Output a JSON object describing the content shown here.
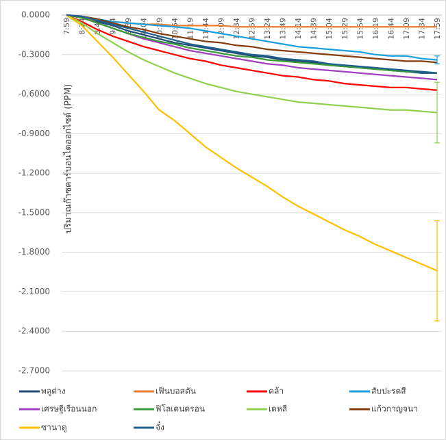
{
  "chart_data": {
    "type": "line",
    "y_label": "ปริมาณก๊าซคาร์บอนไดออกไซด์ (PPM)",
    "categories": [
      "7:59",
      "8:24",
      "8:49",
      "9:14",
      "9:39",
      "10:04",
      "10:29",
      "10:54",
      "11:19",
      "11:44",
      "12:09",
      "12:34",
      "12:59",
      "13:24",
      "13:49",
      "14:14",
      "14:39",
      "15:04",
      "15:29",
      "15:54",
      "16:19",
      "16:44",
      "17:09",
      "17:34",
      "17:59"
    ],
    "ylim": [
      -2.7,
      0
    ],
    "yticks": [
      {
        "value": 0,
        "label": "0.0000"
      },
      {
        "value": -0.3,
        "label": "-0.3000"
      },
      {
        "value": -0.6,
        "label": "-0.6000"
      },
      {
        "value": -0.9,
        "label": "-0.9000"
      },
      {
        "value": -1.2,
        "label": "-1.2000"
      },
      {
        "value": -1.5,
        "label": "-1.5000"
      },
      {
        "value": -1.8,
        "label": "-1.8000"
      },
      {
        "value": -2.1,
        "label": "-2.1000"
      },
      {
        "value": -2.4,
        "label": "-2.4000"
      },
      {
        "value": -2.7,
        "label": "-2.7000"
      }
    ],
    "grid": true,
    "legend": "bottom",
    "series": [
      {
        "name": "พลูด่าง",
        "color": "#1f4e79",
        "values": [
          0,
          -0.02,
          -0.05,
          -0.08,
          -0.12,
          -0.15,
          -0.18,
          -0.21,
          -0.23,
          -0.25,
          -0.27,
          -0.29,
          -0.31,
          -0.32,
          -0.34,
          -0.35,
          -0.36,
          -0.38,
          -0.39,
          -0.4,
          -0.41,
          -0.42,
          -0.43,
          -0.44,
          -0.44
        ]
      },
      {
        "name": "เฟินบอสตัน",
        "color": "#ed7d31",
        "values": [
          0,
          -0.02,
          -0.04,
          -0.05,
          -0.06,
          -0.07,
          -0.07,
          -0.08,
          -0.08,
          -0.08,
          -0.08,
          -0.09,
          -0.09,
          -0.09,
          -0.09,
          -0.09,
          -0.09,
          -0.09,
          -0.09,
          -0.09,
          -0.09,
          -0.09,
          -0.09,
          -0.09,
          -0.09
        ]
      },
      {
        "name": "คล้า",
        "color": "#ff0000",
        "values": [
          0,
          -0.05,
          -0.11,
          -0.16,
          -0.2,
          -0.24,
          -0.27,
          -0.3,
          -0.33,
          -0.35,
          -0.38,
          -0.4,
          -0.42,
          -0.44,
          -0.46,
          -0.47,
          -0.49,
          -0.5,
          -0.52,
          -0.53,
          -0.54,
          -0.55,
          -0.55,
          -0.56,
          -0.57
        ]
      },
      {
        "name": "สับปะรดสี",
        "color": "#1aa0e0",
        "values": [
          0,
          -0.01,
          -0.03,
          -0.05,
          -0.06,
          -0.07,
          -0.08,
          -0.09,
          -0.1,
          -0.12,
          -0.14,
          -0.16,
          -0.18,
          -0.2,
          -0.22,
          -0.24,
          -0.25,
          -0.26,
          -0.27,
          -0.28,
          -0.3,
          -0.31,
          -0.31,
          -0.33,
          -0.34
        ],
        "errors": [
          null,
          null,
          null,
          null,
          null,
          null,
          null,
          null,
          null,
          null,
          null,
          null,
          null,
          null,
          null,
          null,
          null,
          null,
          null,
          null,
          null,
          null,
          null,
          null,
          0.03
        ]
      },
      {
        "name": "เศรษฐีเรือนนอก",
        "color": "#a040c0",
        "values": [
          0,
          -0.02,
          -0.06,
          -0.1,
          -0.14,
          -0.18,
          -0.21,
          -0.24,
          -0.27,
          -0.29,
          -0.31,
          -0.33,
          -0.35,
          -0.37,
          -0.38,
          -0.4,
          -0.41,
          -0.42,
          -0.43,
          -0.44,
          -0.45,
          -0.46,
          -0.47,
          -0.48,
          -0.49
        ]
      },
      {
        "name": "ฟิโลเดนดรอน",
        "color": "#3a9a3a",
        "values": [
          0,
          -0.02,
          -0.06,
          -0.1,
          -0.14,
          -0.17,
          -0.2,
          -0.22,
          -0.25,
          -0.27,
          -0.29,
          -0.31,
          -0.32,
          -0.34,
          -0.35,
          -0.36,
          -0.37,
          -0.38,
          -0.39,
          -0.4,
          -0.41,
          -0.42,
          -0.43,
          -0.43,
          -0.44
        ]
      },
      {
        "name": "เดหลี",
        "color": "#92d050",
        "values": [
          0,
          -0.06,
          -0.14,
          -0.21,
          -0.28,
          -0.34,
          -0.39,
          -0.44,
          -0.48,
          -0.52,
          -0.55,
          -0.58,
          -0.6,
          -0.62,
          -0.64,
          -0.66,
          -0.67,
          -0.68,
          -0.69,
          -0.7,
          -0.71,
          -0.72,
          -0.72,
          -0.73,
          -0.74
        ],
        "errors": [
          null,
          null,
          null,
          null,
          null,
          null,
          null,
          null,
          null,
          null,
          null,
          null,
          null,
          null,
          null,
          null,
          null,
          null,
          null,
          null,
          null,
          null,
          null,
          null,
          0.23
        ]
      },
      {
        "name": "แก้วกาญจนา",
        "color": "#843c0c",
        "values": [
          0,
          -0.01,
          -0.03,
          -0.06,
          -0.09,
          -0.11,
          -0.14,
          -0.16,
          -0.18,
          -0.2,
          -0.21,
          -0.23,
          -0.24,
          -0.26,
          -0.27,
          -0.28,
          -0.29,
          -0.3,
          -0.31,
          -0.32,
          -0.33,
          -0.34,
          -0.35,
          -0.35,
          -0.36
        ]
      },
      {
        "name": "ซานาดู",
        "color": "#ffc000",
        "values": [
          0,
          -0.08,
          -0.2,
          -0.32,
          -0.45,
          -0.58,
          -0.72,
          -0.8,
          -0.9,
          -1.0,
          -1.08,
          -1.16,
          -1.23,
          -1.3,
          -1.38,
          -1.45,
          -1.51,
          -1.57,
          -1.63,
          -1.68,
          -1.74,
          -1.79,
          -1.84,
          -1.89,
          -1.94
        ],
        "errors": [
          null,
          null,
          null,
          null,
          null,
          null,
          null,
          null,
          null,
          null,
          null,
          null,
          null,
          null,
          null,
          null,
          null,
          null,
          null,
          null,
          null,
          null,
          null,
          null,
          0.38
        ]
      },
      {
        "name": "จั๋ง",
        "color": "#1f5f8b",
        "values": [
          0,
          -0.01,
          -0.04,
          -0.07,
          -0.1,
          -0.13,
          -0.16,
          -0.19,
          -0.22,
          -0.24,
          -0.26,
          -0.28,
          -0.3,
          -0.31,
          -0.33,
          -0.34,
          -0.35,
          -0.37,
          -0.38,
          -0.39,
          -0.4,
          -0.41,
          -0.42,
          -0.43,
          -0.44
        ]
      }
    ]
  }
}
